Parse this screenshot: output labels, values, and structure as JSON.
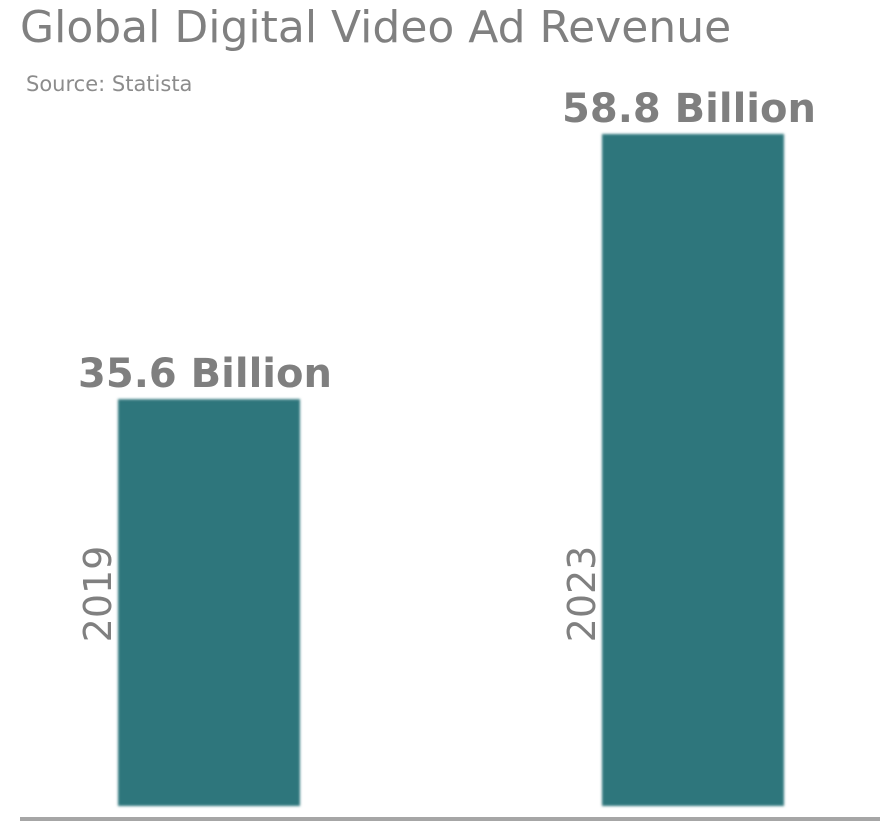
{
  "chart_data": {
    "type": "bar",
    "title": "Global Digital Video Ad Revenue",
    "subtitle": "Source: Statista",
    "categories": [
      "2019",
      "2023"
    ],
    "values": [
      35.6,
      58.8
    ],
    "value_labels": [
      "35.6 Billion",
      "58.8 Billion"
    ],
    "xlabel": "",
    "ylabel": "",
    "ylim": [
      0,
      58.8
    ],
    "grid": false,
    "legend": "none",
    "bar_color": "#2f767c",
    "text_color": "#7f7f7f",
    "axis_color": "#a6a6a6"
  }
}
